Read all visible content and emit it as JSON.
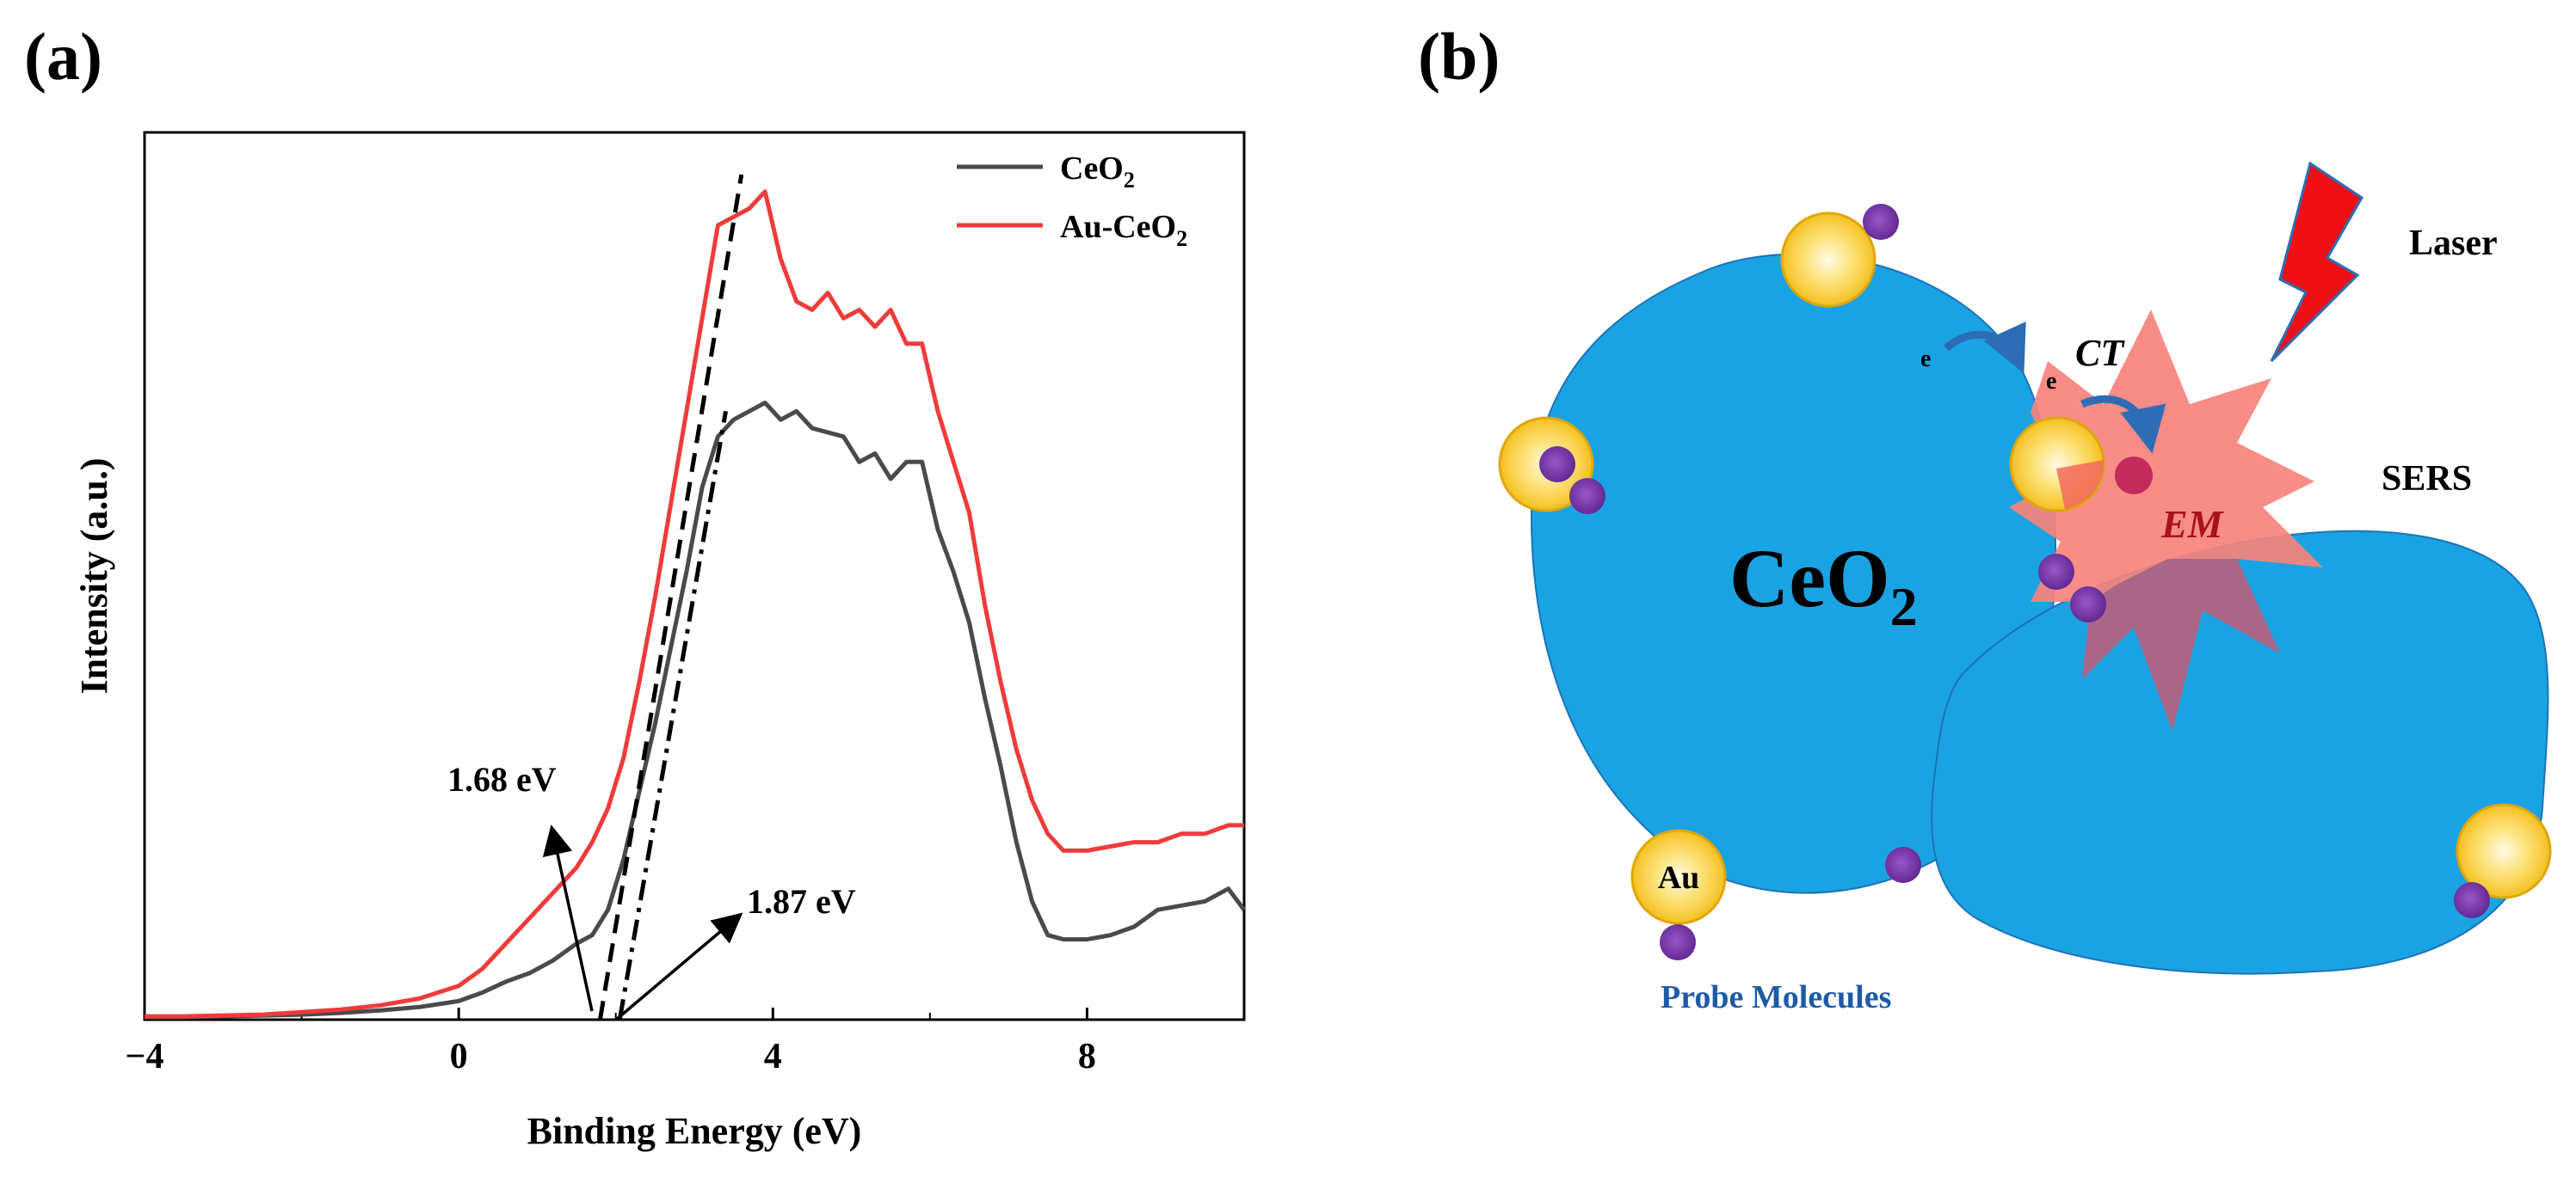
{
  "panels": {
    "a": "(a)",
    "b": "(b)"
  },
  "chart_data": {
    "type": "line",
    "title": "",
    "xlabel": "Binding Energy (eV)",
    "ylabel": "Intensity (a.u.)",
    "xlim": [
      -4,
      10
    ],
    "ylim": [
      0,
      1.05
    ],
    "xticks": [
      -4,
      0,
      4,
      8
    ],
    "legend_position": "top-right",
    "series": [
      {
        "name": "CeO",
        "name_sub": "2",
        "color": "#4a4a4a",
        "x": [
          -4,
          -3.5,
          -3,
          -2.5,
          -2,
          -1.5,
          -1,
          -0.5,
          0,
          0.3,
          0.6,
          0.9,
          1.2,
          1.5,
          1.7,
          1.9,
          2.1,
          2.3,
          2.5,
          2.7,
          2.9,
          3.1,
          3.3,
          3.5,
          3.7,
          3.9,
          4.1,
          4.3,
          4.5,
          4.7,
          4.9,
          5.1,
          5.3,
          5.5,
          5.7,
          5.9,
          6.1,
          6.3,
          6.5,
          6.7,
          6.9,
          7.1,
          7.3,
          7.5,
          7.7,
          8,
          8.3,
          8.6,
          8.9,
          9.2,
          9.5,
          9.8,
          10
        ],
        "y": [
          0.003,
          0.003,
          0.004,
          0.005,
          0.006,
          0.008,
          0.011,
          0.015,
          0.022,
          0.032,
          0.045,
          0.055,
          0.07,
          0.09,
          0.1,
          0.13,
          0.19,
          0.27,
          0.35,
          0.44,
          0.53,
          0.63,
          0.69,
          0.71,
          0.72,
          0.73,
          0.71,
          0.72,
          0.7,
          0.695,
          0.69,
          0.66,
          0.67,
          0.64,
          0.66,
          0.66,
          0.58,
          0.53,
          0.47,
          0.38,
          0.3,
          0.21,
          0.14,
          0.1,
          0.095,
          0.095,
          0.1,
          0.11,
          0.13,
          0.135,
          0.14,
          0.155,
          0.13
        ]
      },
      {
        "name": "Au-CeO",
        "name_sub": "2",
        "color": "#ef3b3b",
        "x": [
          -4,
          -3.5,
          -3,
          -2.5,
          -2,
          -1.5,
          -1,
          -0.5,
          0,
          0.3,
          0.6,
          0.9,
          1.2,
          1.5,
          1.7,
          1.9,
          2.1,
          2.3,
          2.5,
          2.7,
          2.9,
          3.1,
          3.3,
          3.5,
          3.7,
          3.9,
          4.1,
          4.3,
          4.5,
          4.7,
          4.9,
          5.1,
          5.3,
          5.5,
          5.7,
          5.9,
          6.1,
          6.3,
          6.5,
          6.7,
          6.9,
          7.1,
          7.3,
          7.5,
          7.7,
          8,
          8.3,
          8.6,
          8.9,
          9.2,
          9.5,
          9.8,
          10
        ],
        "y": [
          0.004,
          0.004,
          0.005,
          0.006,
          0.009,
          0.012,
          0.017,
          0.025,
          0.04,
          0.06,
          0.09,
          0.12,
          0.15,
          0.18,
          0.21,
          0.25,
          0.31,
          0.4,
          0.5,
          0.61,
          0.72,
          0.83,
          0.94,
          0.95,
          0.96,
          0.98,
          0.9,
          0.85,
          0.84,
          0.86,
          0.83,
          0.84,
          0.82,
          0.84,
          0.8,
          0.8,
          0.72,
          0.66,
          0.6,
          0.49,
          0.4,
          0.32,
          0.26,
          0.22,
          0.2,
          0.2,
          0.205,
          0.21,
          0.21,
          0.22,
          0.22,
          0.23,
          0.23
        ]
      }
    ],
    "fit_lines": [
      {
        "style": "dash",
        "x": [
          1.8,
          3.6
        ],
        "y": [
          0.0,
          1.0
        ]
      },
      {
        "style": "dashdot",
        "x": [
          2.05,
          3.4
        ],
        "y": [
          0.0,
          0.72
        ]
      }
    ],
    "annotations": [
      {
        "text": "1.68 eV",
        "at_x": 1.68
      },
      {
        "text": "1.87 eV",
        "at_x": 1.87
      }
    ]
  },
  "diagram": {
    "ceo2_label": "CeO",
    "ceo2_sub": "2",
    "au_label": "Au",
    "probe_label": "Probe Molecules",
    "laser_label": "Laser",
    "sers_label": "SERS",
    "ct_label": "CT",
    "em_label": "EM",
    "electron_label": "e",
    "colors": {
      "particle": "#1aa3e3",
      "particle_stroke": "#1b73b8",
      "gold": "#f2c419",
      "gold_center": "#fff5cc",
      "molecule": "#7a35a8",
      "starburst": "#f6837c",
      "laser": "#f00f14",
      "arrow": "#2c6db6",
      "probe_text": "#1e5aa6"
    }
  }
}
